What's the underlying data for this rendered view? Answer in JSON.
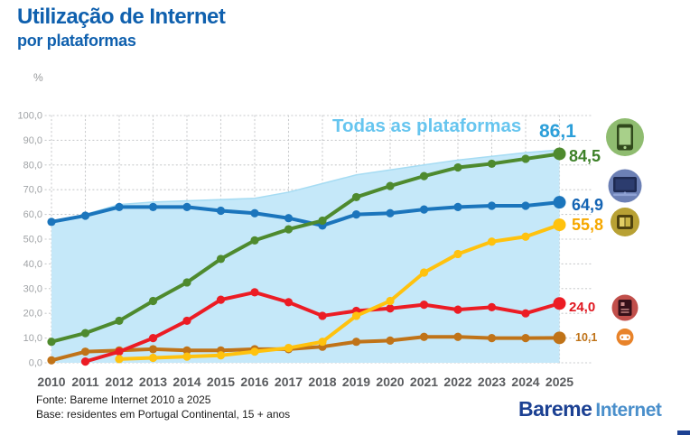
{
  "header": {
    "title": "Utilização de Internet",
    "subtitle": "por plataformas"
  },
  "chart_data": {
    "type": "line",
    "title": "Utilização de Internet por plataformas",
    "y_unit": "%",
    "ylim": [
      0,
      100
    ],
    "grid": true,
    "y_tick_labels": [
      "100,0",
      "90,0",
      "80,0",
      "70,0",
      "60,0",
      "50,0",
      "40,0",
      "30,0",
      "20,0",
      "10,0",
      "0,0"
    ],
    "x": [
      "2010",
      "2011",
      "2012",
      "2013",
      "2014",
      "2015",
      "2016",
      "2017",
      "2018",
      "2019",
      "2020",
      "2021",
      "2022",
      "2023",
      "2024",
      "2025"
    ],
    "area_series": {
      "name": "todas-as-plataformas",
      "label": "Todas as plataformas",
      "value_label": "86,1",
      "fill": "#c5e8f9",
      "edge_color": "#a6dcf3",
      "label_color": "#66c5ef",
      "value_color": "#2c9fd9",
      "values": [
        57,
        60,
        64,
        65,
        65.5,
        66,
        66.5,
        69,
        72.5,
        76,
        78,
        80,
        82,
        83.5,
        85,
        86.1
      ]
    },
    "series": [
      {
        "name": "consola-de-jogos",
        "icon": "gamepad-icon",
        "color": "#c07318",
        "label_color": "#bf7217",
        "icon_bg": "#e8832a",
        "value_label": "10,1",
        "values": [
          1,
          4.5,
          5,
          5.5,
          5,
          5,
          5.5,
          5.5,
          6.5,
          8.5,
          9,
          10.5,
          10.5,
          10,
          10,
          10.1
        ]
      },
      {
        "name": "e-reader",
        "icon": "ereader-icon",
        "color": "#ec1c24",
        "label_color": "#e0161f",
        "icon_bg": "#c14f4b",
        "value_label": "24,0",
        "values": [
          null,
          0.5,
          4.5,
          10,
          17,
          25.5,
          28.5,
          24.5,
          19,
          21,
          22,
          23.5,
          21.5,
          22.5,
          20,
          24.0
        ]
      },
      {
        "name": "tablet",
        "icon": "tablet-icon",
        "color": "#ffc20e",
        "label_color": "#f6a800",
        "icon_bg": "#b8a134",
        "value_label": "55,8",
        "values": [
          null,
          null,
          1.5,
          2,
          2.5,
          3,
          4.5,
          6,
          8.5,
          19,
          25,
          36.5,
          44,
          49,
          51,
          55.8
        ]
      },
      {
        "name": "computador",
        "icon": "computer-icon",
        "color": "#1b75bc",
        "label_color": "#1464b4",
        "icon_bg": "#6c80b5",
        "value_label": "64,9",
        "values": [
          57,
          59.5,
          63,
          63,
          63,
          61.5,
          60.5,
          58.5,
          55.5,
          60,
          60.5,
          62,
          63,
          63.5,
          63.5,
          64.9
        ]
      },
      {
        "name": "smartphone",
        "icon": "smartphone-icon",
        "color": "#4e8a2e",
        "label_color": "#3d8128",
        "icon_bg": "#8fbc70",
        "value_label": "84,5",
        "values": [
          8.5,
          12,
          17,
          25,
          32.5,
          42,
          49.5,
          54,
          57.5,
          67,
          71.5,
          75.5,
          79,
          80.5,
          82.5,
          84.5
        ]
      }
    ]
  },
  "footer": {
    "source": "Fonte: Bareme Internet 2010 a 2025",
    "base": "Base: residentes em Portugal Continental, 15 + anos",
    "logo_primary": "Bareme",
    "logo_secondary": "Internet"
  }
}
